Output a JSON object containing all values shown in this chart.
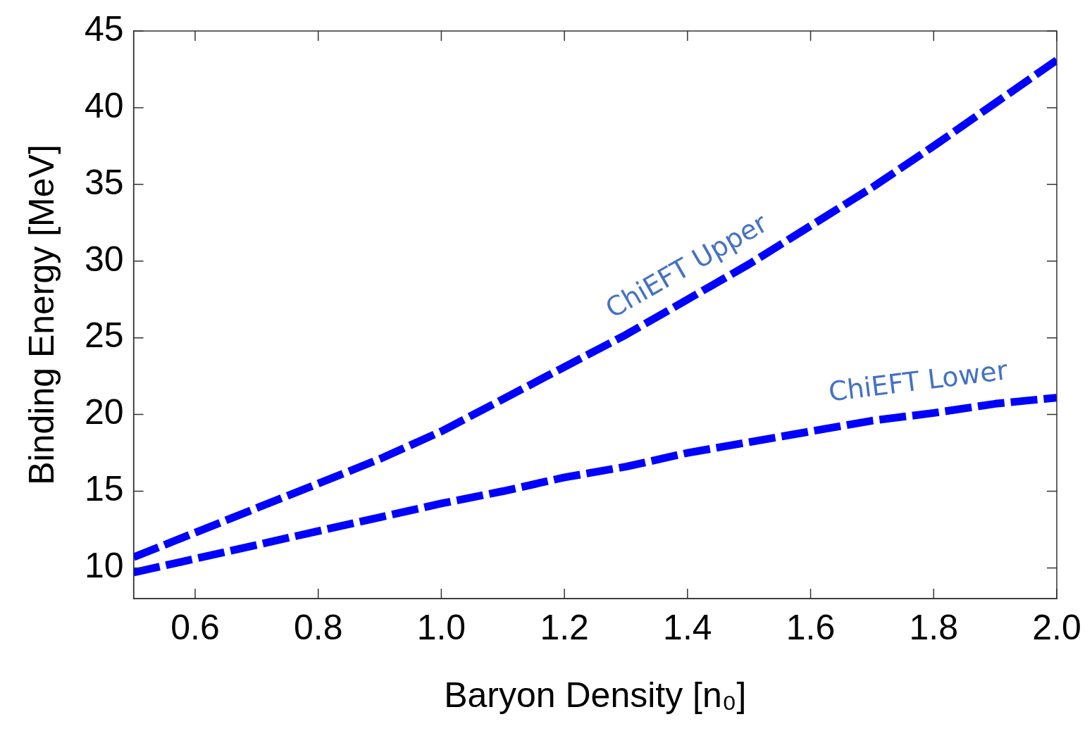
{
  "chart_data": {
    "type": "line",
    "xlabel": "Baryon Density [n₀]",
    "ylabel": "Binding Energy [MeV]",
    "x": [
      0.5,
      0.6,
      0.7,
      0.8,
      0.9,
      1.0,
      1.1,
      1.2,
      1.3,
      1.4,
      1.5,
      1.6,
      1.7,
      1.8,
      1.9,
      2.0
    ],
    "series": [
      {
        "color": "#0000ff",
        "values": [
          10.7,
          12.3,
          13.9,
          15.5,
          17.1,
          18.9,
          21.0,
          23.1,
          25.2,
          27.5,
          29.8,
          32.3,
          34.8,
          37.5,
          40.3,
          43.1
        ]
      },
      {
        "color": "#0000ff",
        "values": [
          9.7,
          10.6,
          11.5,
          12.4,
          13.3,
          14.2,
          15.0,
          15.9,
          16.6,
          17.5,
          18.2,
          18.9,
          19.6,
          20.1,
          20.7,
          21.1
        ]
      }
    ],
    "line_style": "dashed",
    "marker": "none",
    "grid": false,
    "legend": false,
    "xlim": [
      0.5,
      2.0
    ],
    "ylim": [
      8,
      45
    ],
    "xticks": [
      0.6,
      0.8,
      {
        "value": 1.0,
        "label": "1.0"
      },
      1.2,
      1.4,
      1.6,
      1.8,
      {
        "value": 2.0,
        "label": "2.0"
      }
    ],
    "yticks": [
      10,
      15,
      20,
      25,
      30,
      35,
      40,
      45
    ],
    "annotations": [
      "ChiEFT Upper",
      "ChiEFT Lower"
    ]
  }
}
